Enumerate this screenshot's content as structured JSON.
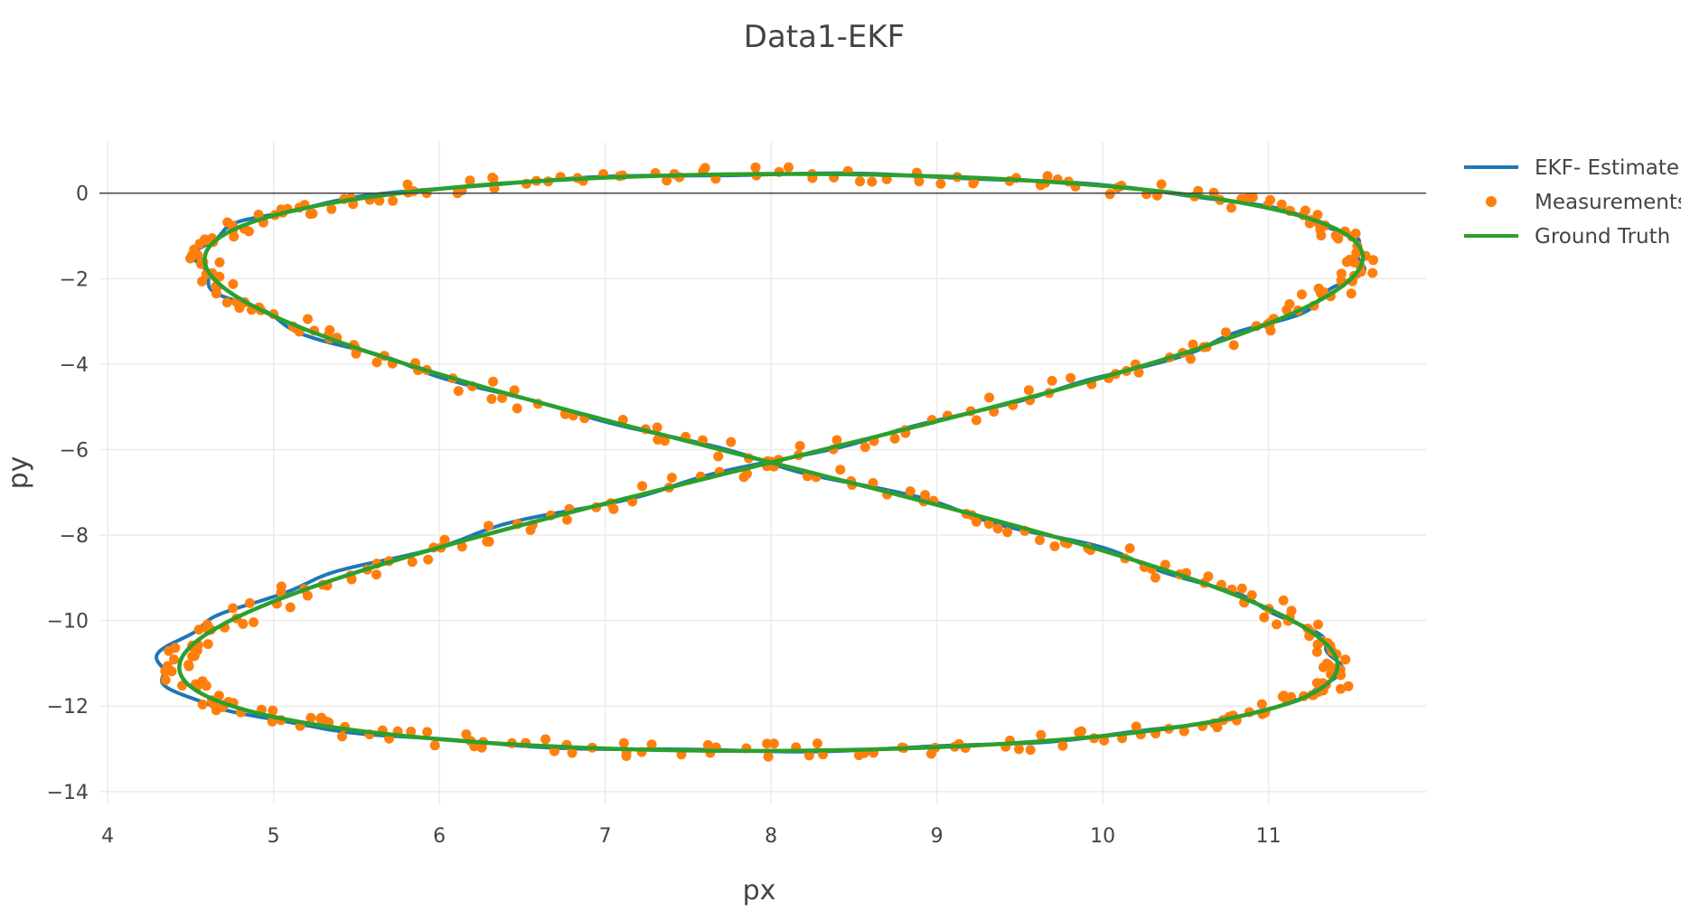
{
  "chart_data": {
    "type": "scatter",
    "title": "Data1-EKF",
    "xlabel": "px",
    "ylabel": "py",
    "xlim": [
      3.95,
      11.95
    ],
    "ylim": [
      -14.3,
      1.2
    ],
    "x_ticks": [
      4,
      5,
      6,
      7,
      8,
      9,
      10,
      11
    ],
    "y_ticks": [
      0,
      -2,
      -4,
      -6,
      -8,
      -10,
      -12,
      -14
    ],
    "x_tick_labels": [
      "4",
      "5",
      "6",
      "7",
      "8",
      "9",
      "10",
      "11"
    ],
    "y_tick_labels": [
      "0",
      "−2",
      "−4",
      "−6",
      "−8",
      "−10",
      "−12",
      "−14"
    ],
    "grid": true,
    "zero_line": true,
    "legend_position": "top-right",
    "curve": {
      "description": "figure-eight path",
      "center": [
        8.0,
        -6.3
      ],
      "x_amplitude": 3.6,
      "y_amplitude": 6.75,
      "x_range": [
        4.4,
        11.4
      ],
      "y_range": [
        -13.2,
        0.2
      ]
    },
    "series": [
      {
        "name": "EKF- Estimate",
        "mode": "lines",
        "color": "#1f77b4",
        "x_range": [
          4.25,
          11.35
        ],
        "y_range": [
          -13.25,
          0.25
        ]
      },
      {
        "name": "Measurements",
        "mode": "markers",
        "color": "#ff7f0e",
        "x_range": [
          4.3,
          11.45
        ],
        "y_range": [
          -13.4,
          0.3
        ]
      },
      {
        "name": "Ground Truth",
        "mode": "lines",
        "color": "#2ca02c",
        "x_range": [
          4.4,
          11.35
        ],
        "y_range": [
          -13.2,
          0.2
        ]
      }
    ]
  }
}
